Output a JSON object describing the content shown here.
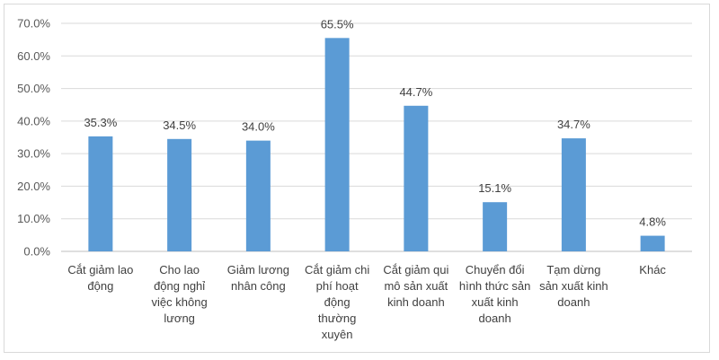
{
  "chart_data": {
    "type": "bar",
    "categories": [
      [
        "Cắt giảm lao",
        "động"
      ],
      [
        "Cho lao",
        "động nghỉ",
        "việc không",
        "lương"
      ],
      [
        "Giảm lương",
        "nhân công"
      ],
      [
        "Cắt giảm chi",
        "phí hoạt",
        "động",
        "thường",
        "xuyên"
      ],
      [
        "Cắt giảm qui",
        "mô sản xuất",
        "kinh doanh"
      ],
      [
        "Chuyển đổi",
        "hình thức sản",
        "xuất kinh",
        "doanh"
      ],
      [
        "Tạm dừng",
        "sản xuất kinh",
        "doanh"
      ],
      [
        "Khác"
      ]
    ],
    "values": [
      35.3,
      34.5,
      34.0,
      65.5,
      44.7,
      15.1,
      34.7,
      4.8
    ],
    "data_labels": [
      "35.3%",
      "34.5%",
      "34.0%",
      "65.5%",
      "44.7%",
      "15.1%",
      "34.7%",
      "4.8%"
    ],
    "yticks": [
      0,
      10,
      20,
      30,
      40,
      50,
      60,
      70
    ],
    "ytick_labels": [
      "0.0%",
      "10.0%",
      "20.0%",
      "30.0%",
      "40.0%",
      "50.0%",
      "60.0%",
      "70.0%"
    ],
    "ylim": [
      0,
      70
    ],
    "bar_color": "#5B9BD5",
    "grid": true,
    "legend": "none"
  }
}
